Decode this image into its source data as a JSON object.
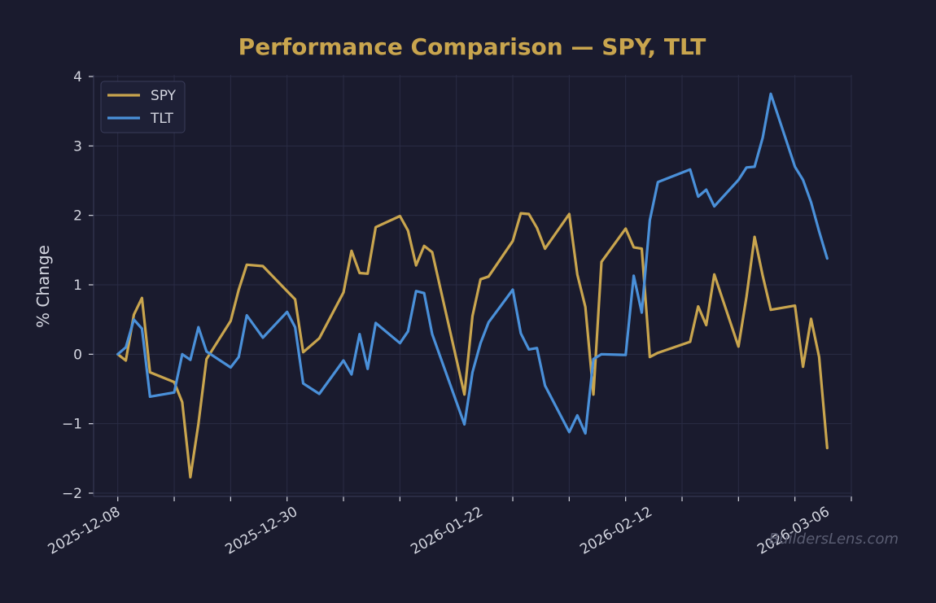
{
  "colors": {
    "background": "#1a1b2e",
    "title": "#c9a54e",
    "text": "#d4d6e0",
    "grid": "#2a2c45",
    "axis": "#3a3d5a",
    "spy": "#c9a54e",
    "tlt": "#4a90d9",
    "legend_bg": "#1e2036",
    "legend_border": "#3a3d5a",
    "watermark": "#5a5d72"
  },
  "watermark": "BuildersLens.com",
  "chart_data": {
    "type": "line",
    "title": "Performance Comparison — SPY, TLT",
    "xlabel": "",
    "ylabel": "% Change",
    "ylim": [
      -2,
      4
    ],
    "xlim": [
      "2025-12-05",
      "2026-03-09"
    ],
    "grid": true,
    "legend_position": "top-left",
    "x_ticks": [
      "2025-12-08",
      "2025-12-30",
      "2026-01-22",
      "2026-02-12",
      "2026-03-06"
    ],
    "y_ticks": [
      -2,
      -1,
      0,
      1,
      2,
      3,
      4
    ],
    "y_tick_labels": [
      "−2",
      "−1",
      "0",
      "1",
      "2",
      "3",
      "4"
    ],
    "x": [
      "2025-12-08",
      "2025-12-09",
      "2025-12-10",
      "2025-12-11",
      "2025-12-12",
      "2025-12-15",
      "2025-12-16",
      "2025-12-17",
      "2025-12-18",
      "2025-12-19",
      "2025-12-22",
      "2025-12-23",
      "2025-12-24",
      "2025-12-26",
      "2025-12-29",
      "2025-12-30",
      "2025-12-31",
      "2026-01-02",
      "2026-01-05",
      "2026-01-06",
      "2026-01-07",
      "2026-01-08",
      "2026-01-09",
      "2026-01-12",
      "2026-01-13",
      "2026-01-14",
      "2026-01-15",
      "2026-01-16",
      "2026-01-20",
      "2026-01-21",
      "2026-01-22",
      "2026-01-23",
      "2026-01-26",
      "2026-01-27",
      "2026-01-28",
      "2026-01-29",
      "2026-01-30",
      "2026-02-02",
      "2026-02-03",
      "2026-02-04",
      "2026-02-05",
      "2026-02-06",
      "2026-02-09",
      "2026-02-10",
      "2026-02-11",
      "2026-02-12",
      "2026-02-13",
      "2026-02-17",
      "2026-02-18",
      "2026-02-19",
      "2026-02-20",
      "2026-02-23",
      "2026-02-24",
      "2026-02-25",
      "2026-02-26",
      "2026-02-27",
      "2026-03-02",
      "2026-03-03",
      "2026-03-04",
      "2026-03-05",
      "2026-03-06"
    ],
    "series": [
      {
        "name": "SPY",
        "values": [
          0.0,
          -0.09,
          0.57,
          0.81,
          -0.26,
          -0.4,
          -0.69,
          -1.77,
          -1.0,
          -0.07,
          0.48,
          0.93,
          1.29,
          1.27,
          0.91,
          0.79,
          0.03,
          0.23,
          0.89,
          1.49,
          1.17,
          1.16,
          1.83,
          1.99,
          1.78,
          1.28,
          1.56,
          1.47,
          -0.58,
          0.55,
          1.08,
          1.12,
          1.63,
          2.03,
          2.02,
          1.82,
          1.52,
          2.02,
          1.15,
          0.68,
          -0.58,
          1.33,
          1.81,
          1.54,
          1.52,
          -0.04,
          0.02,
          0.18,
          0.69,
          0.42,
          1.15,
          0.11,
          0.83,
          1.69,
          1.13,
          0.64,
          0.7,
          -0.18,
          0.51,
          -0.04,
          -1.35
        ]
      },
      {
        "name": "TLT",
        "values": [
          0.0,
          0.1,
          0.5,
          0.37,
          -0.61,
          -0.55,
          0.0,
          -0.08,
          0.39,
          0.04,
          -0.19,
          -0.04,
          0.56,
          0.24,
          0.61,
          0.39,
          -0.42,
          -0.57,
          -0.09,
          -0.29,
          0.29,
          -0.21,
          0.45,
          0.16,
          0.33,
          0.91,
          0.88,
          0.29,
          -1.01,
          -0.26,
          0.16,
          0.46,
          0.93,
          0.3,
          0.07,
          0.09,
          -0.45,
          -1.12,
          -0.88,
          -1.14,
          -0.07,
          0.0,
          -0.01,
          1.13,
          0.6,
          1.93,
          2.48,
          2.66,
          2.27,
          2.37,
          2.13,
          2.51,
          2.69,
          2.7,
          3.12,
          3.75,
          2.7,
          2.51,
          2.19,
          1.77,
          1.38
        ]
      }
    ]
  }
}
